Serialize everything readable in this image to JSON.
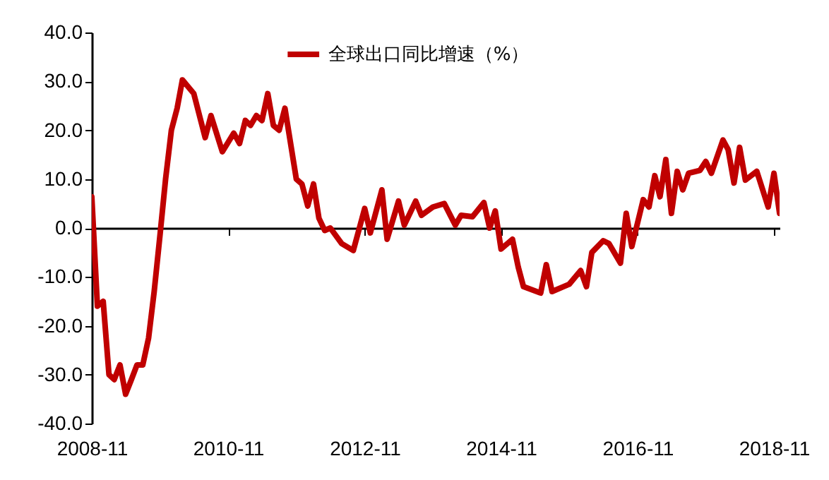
{
  "chart_data": {
    "type": "line",
    "x": [
      "2008-11",
      "2008-12",
      "2009-01",
      "2009-02",
      "2009-03",
      "2009-04",
      "2009-05",
      "2009-06",
      "2009-07",
      "2009-08",
      "2009-09",
      "2009-10",
      "2009-11",
      "2009-12",
      "2010-01",
      "2010-02",
      "2010-03",
      "2010-05",
      "2010-07",
      "2010-08",
      "2010-10",
      "2010-12",
      "2011-01",
      "2011-02",
      "2011-03",
      "2011-04",
      "2011-05",
      "2011-06",
      "2011-07",
      "2011-08",
      "2011-09",
      "2011-11",
      "2011-12",
      "2012-01",
      "2012-02",
      "2012-03",
      "2012-04",
      "2012-05",
      "2012-07",
      "2012-09",
      "2012-11",
      "2012-12",
      "2013-02",
      "2013-03",
      "2013-05",
      "2013-06",
      "2013-08",
      "2013-09",
      "2013-11",
      "2014-01",
      "2014-03",
      "2014-04",
      "2014-06",
      "2014-08",
      "2014-09",
      "2014-10",
      "2014-11",
      "2015-01",
      "2015-02",
      "2015-03",
      "2015-06",
      "2015-07",
      "2015-08",
      "2015-10",
      "2015-11",
      "2016-01",
      "2016-02",
      "2016-03",
      "2016-05",
      "2016-06",
      "2016-08",
      "2016-09",
      "2016-10",
      "2016-12",
      "2017-01",
      "2017-02",
      "2017-03",
      "2017-04",
      "2017-05",
      "2017-06",
      "2017-07",
      "2017-08",
      "2017-10",
      "2017-11",
      "2017-12",
      "2018-02",
      "2018-03",
      "2018-04",
      "2018-05",
      "2018-06",
      "2018-08",
      "2018-10",
      "2018-11",
      "2018-12"
    ],
    "series": [
      {
        "name": "全球出口同比增速（%）",
        "color": "#c00000",
        "values": [
          6.4,
          -16,
          -15,
          -30,
          -31,
          -28,
          -34,
          -31,
          -28,
          -28,
          -22.5,
          -13,
          -1.5,
          10,
          20,
          24.5,
          30.3,
          27.5,
          18.5,
          23,
          15.6,
          19.4,
          17.3,
          22,
          21,
          23,
          22,
          27.5,
          21,
          20,
          24.5,
          10,
          9,
          4.5,
          9,
          2,
          -0.5,
          0,
          -3.2,
          -4.6,
          4,
          -1,
          7.8,
          -2.3,
          5.5,
          0.6,
          5.5,
          2.6,
          4.3,
          5,
          0.6,
          2.6,
          2.3,
          5.2,
          0,
          3.5,
          -4.3,
          -2.3,
          -8,
          -12,
          -13.3,
          -7.5,
          -13,
          -12,
          -11.5,
          -8.7,
          -12,
          -5,
          -2.6,
          -3.2,
          -7.2,
          3,
          -3.8,
          5.8,
          4.3,
          10.7,
          6.4,
          14,
          3,
          11.6,
          7.8,
          11.2,
          11.8,
          13.6,
          11.2,
          18,
          16,
          9.2,
          16.5,
          9.8,
          11.6,
          4.3,
          11.2,
          3
        ]
      }
    ],
    "xlim": [
      "2008-11",
      "2018-12"
    ],
    "xticks": [
      "2008-11",
      "2010-11",
      "2012-11",
      "2014-11",
      "2016-11",
      "2018-11"
    ],
    "ylim": [
      -40,
      40
    ],
    "yticks": [
      {
        "value": -40,
        "label": "-40.0"
      },
      {
        "value": -30,
        "label": "-30.0"
      },
      {
        "value": -20,
        "label": "-20.0"
      },
      {
        "value": -10,
        "label": "-10.0"
      },
      {
        "value": 0,
        "label": "0.0"
      },
      {
        "value": 10,
        "label": "10.0"
      },
      {
        "value": 20,
        "label": "20.0"
      },
      {
        "value": 30,
        "label": "30.0"
      },
      {
        "value": 40,
        "label": "40.0"
      }
    ],
    "legend": "top",
    "marker": "none",
    "line_style": "solid"
  }
}
